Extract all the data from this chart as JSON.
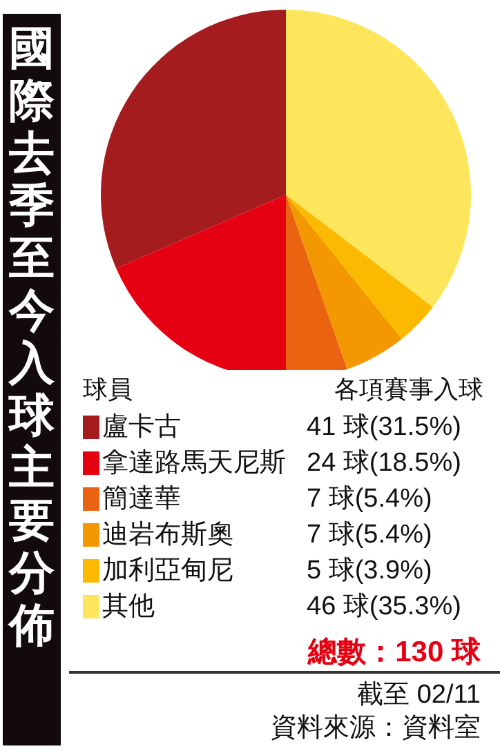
{
  "chart_data": {
    "type": "pie",
    "title": "國際去季至今入球主要分佈",
    "legend_title": "球員",
    "legend": "bottom",
    "categories": [
      "盧卡古",
      "拿達路馬天尼斯",
      "簡達華",
      "迪岩布斯奧",
      "加利亞甸尼",
      "其他"
    ],
    "values": [
      41,
      24,
      7,
      7,
      5,
      46
    ],
    "value_labels": [
      "41 球(31.5%)",
      "24 球(18.5%)",
      "7 球(5.4%)",
      "7 球(5.4%)",
      "5 球(3.9%)",
      "46 球(35.3%)"
    ],
    "colors": [
      "#a51c1f",
      "#e50012",
      "#ea6311",
      "#f39800",
      "#fbb900",
      "#fde65b"
    ],
    "annotations": [
      "各項賽事入球",
      "總數：130 球",
      "截至 02/11",
      "資料來源：資料室"
    ]
  }
}
